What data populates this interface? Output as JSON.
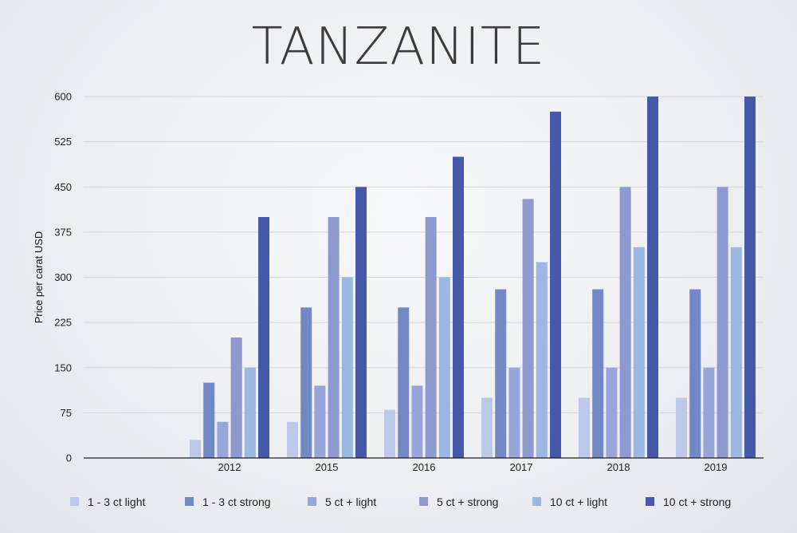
{
  "chart_data": {
    "type": "bar",
    "title": "TANZANITE",
    "xlabel": "",
    "ylabel": "Price per carat USD",
    "ylim": [
      0,
      600
    ],
    "yticks": [
      0,
      75,
      150,
      225,
      300,
      375,
      450,
      525,
      600
    ],
    "grid": true,
    "legend_position": "bottom",
    "categories": [
      "2012",
      "2015",
      "2016",
      "2017",
      "2018",
      "2019"
    ],
    "series": [
      {
        "name": "1 - 3 ct light",
        "color": "#bcc9e9",
        "values": [
          30,
          60,
          80,
          100,
          100,
          100
        ]
      },
      {
        "name": "1 - 3 ct strong",
        "color": "#7488c6",
        "values": [
          125,
          250,
          250,
          280,
          280,
          280
        ]
      },
      {
        "name": "5 ct + light",
        "color": "#98a5d8",
        "values": [
          60,
          120,
          120,
          150,
          150,
          150
        ]
      },
      {
        "name": "5 ct + strong",
        "color": "#8e9ace",
        "values": [
          200,
          400,
          400,
          430,
          450,
          450
        ]
      },
      {
        "name": "10 ct + light",
        "color": "#9bb7e2",
        "values": [
          150,
          300,
          300,
          325,
          350,
          350
        ]
      },
      {
        "name": "10 ct + strong",
        "color": "#4559a8",
        "values": [
          400,
          450,
          500,
          575,
          600,
          600
        ]
      }
    ]
  }
}
